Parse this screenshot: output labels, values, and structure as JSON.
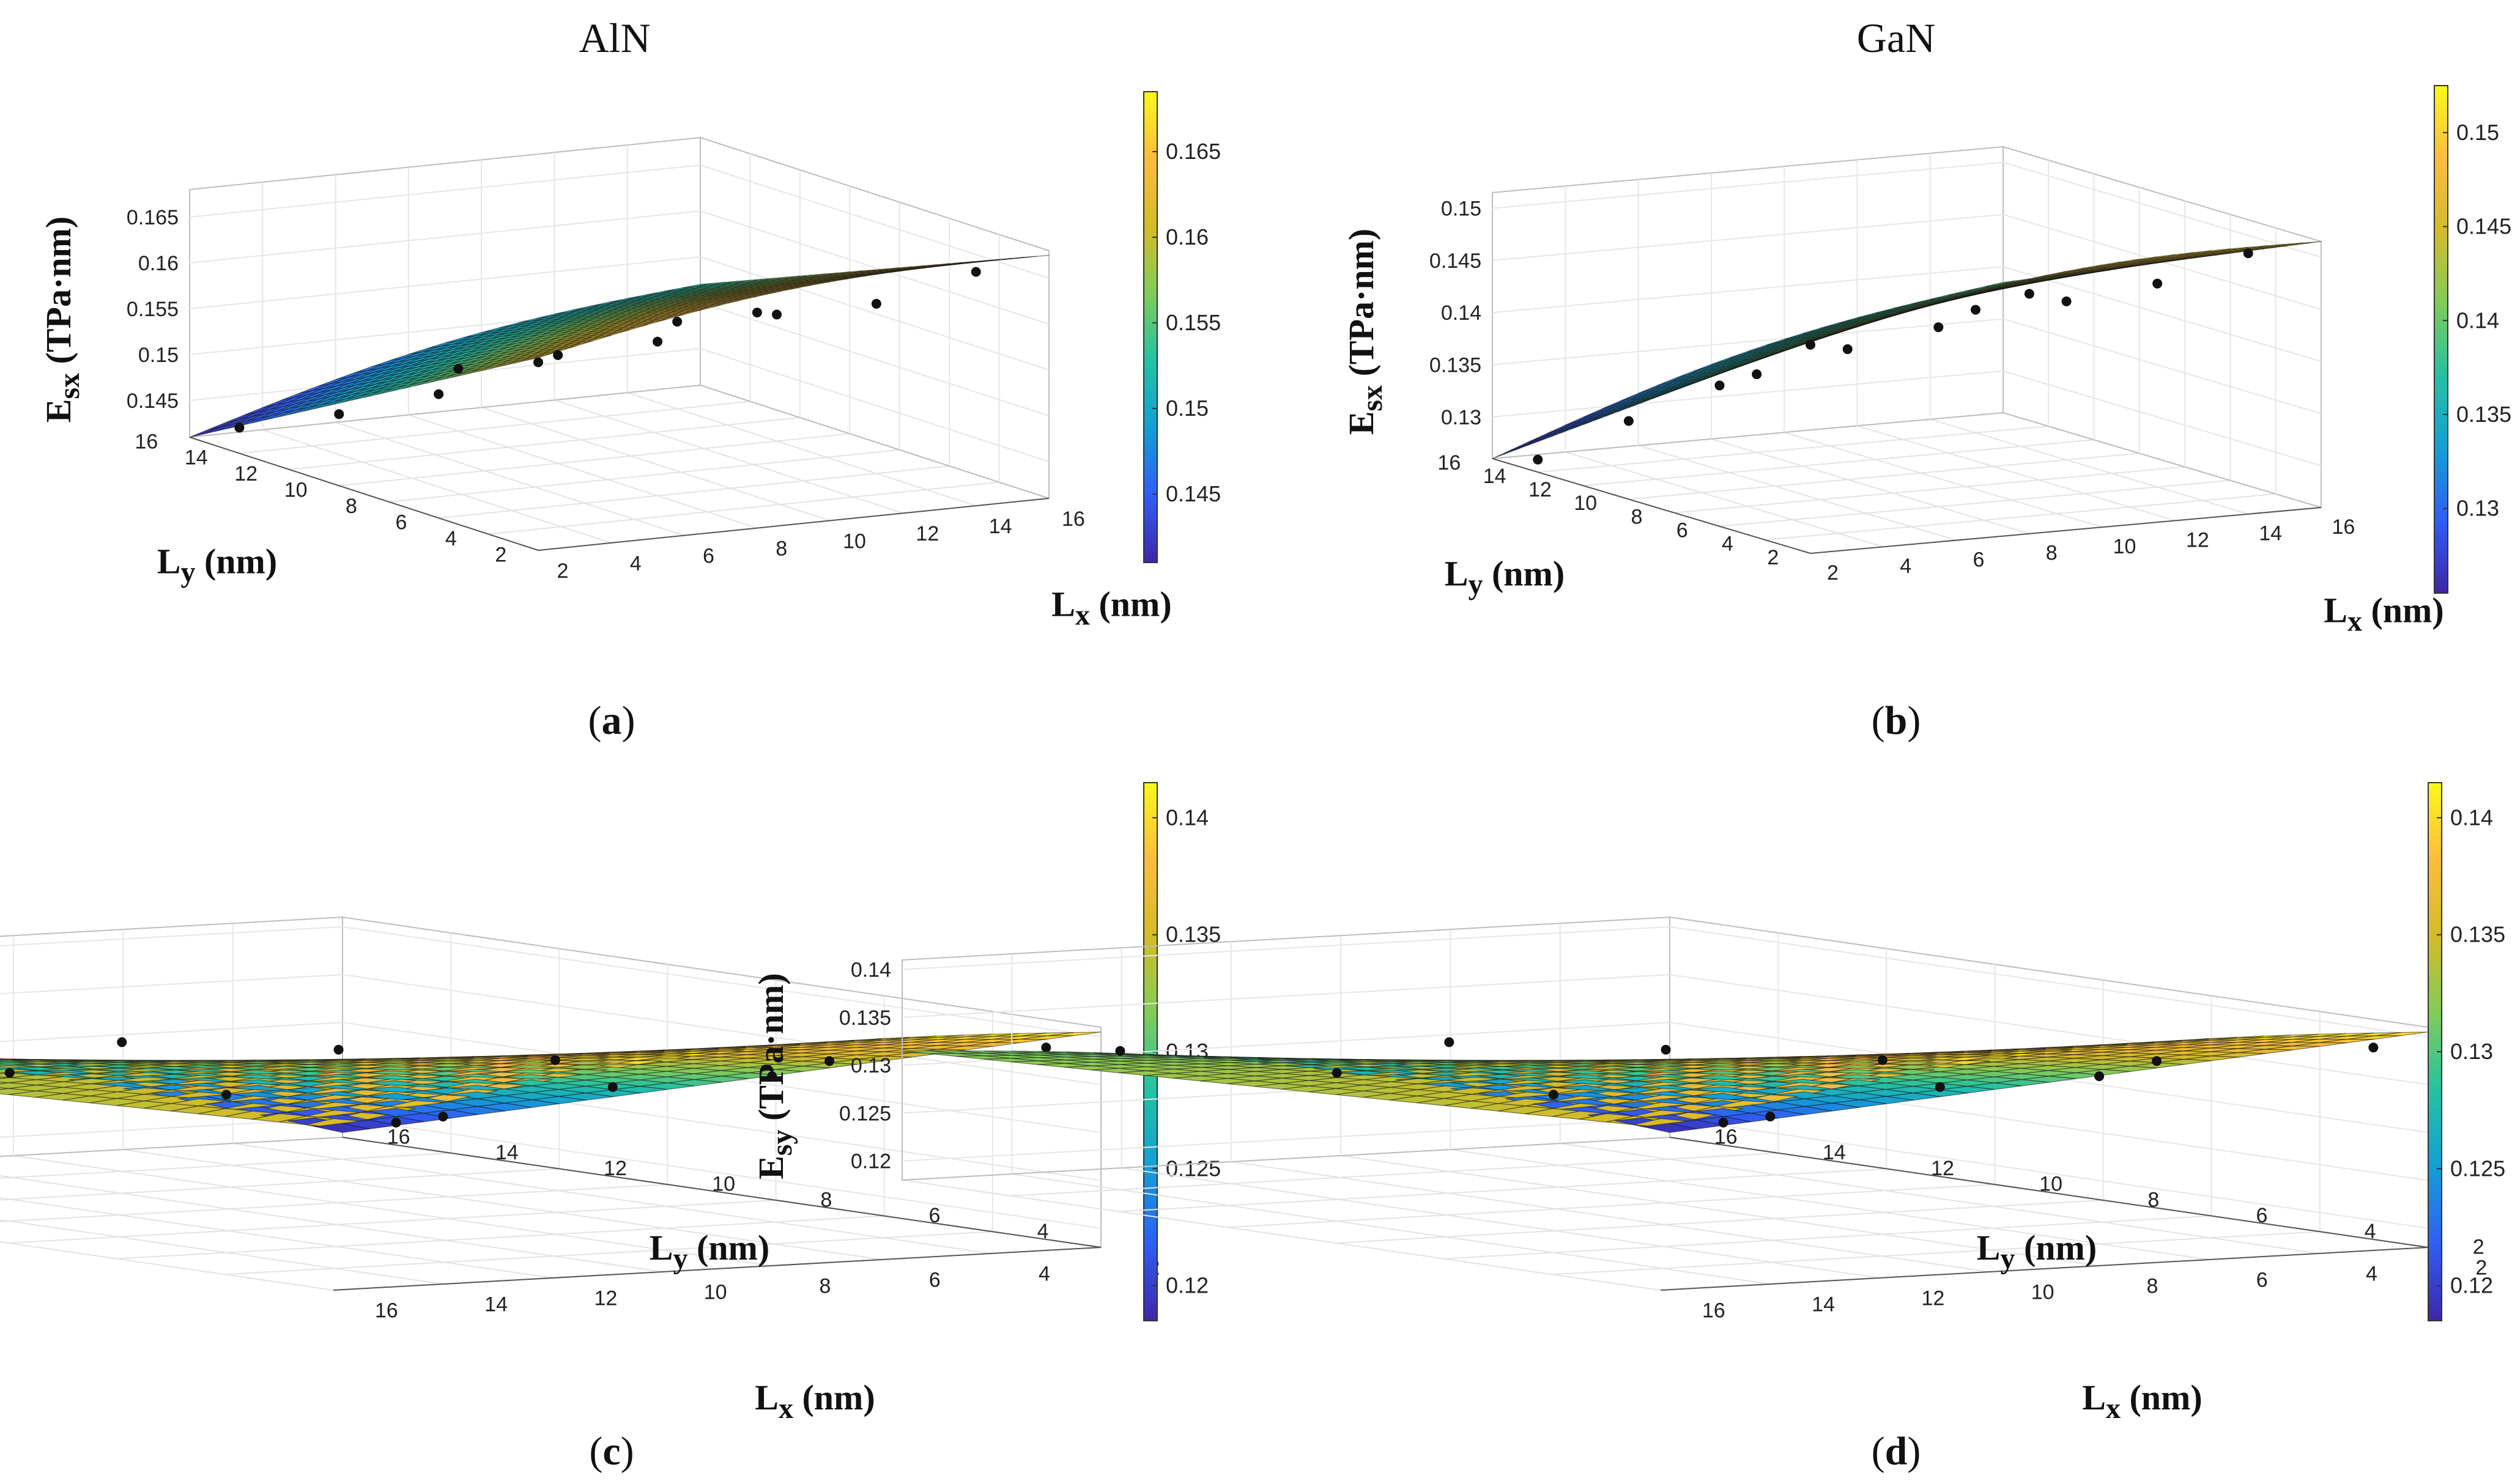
{
  "titles": {
    "left": "AlN",
    "right": "GaN"
  },
  "chart_data": [
    {
      "id": "a",
      "caption": {
        "open": "(",
        "letter": "a",
        "close": ")"
      },
      "type": "surface3d",
      "material": "AlN",
      "title": "AlN",
      "zlabel": {
        "main": "E",
        "sub": "sx",
        "rest": " (TPa·nm)"
      },
      "xlabel": {
        "main": "L",
        "sub": "x",
        "rest": " (nm)"
      },
      "ylabel": {
        "main": "L",
        "sub": "y",
        "rest": " (nm)"
      },
      "x_ticks": [
        "2",
        "4",
        "6",
        "8",
        "10",
        "12",
        "14",
        "16"
      ],
      "y_ticks": [
        "2",
        "4",
        "6",
        "8",
        "10",
        "12",
        "14",
        "16"
      ],
      "z_ticks": [
        "0.145",
        "0.15",
        "0.155",
        "0.16",
        "0.165"
      ],
      "colorbar_ticks": [
        "0.145",
        "0.15",
        "0.155",
        "0.16",
        "0.165"
      ],
      "z_range": [
        0.141,
        0.168
      ],
      "colorbar_range": [
        0.141,
        0.1685
      ],
      "view": "x-to-right",
      "surface": {
        "at_xmin_ymin": 0.162,
        "at_xmax_ymin": 0.1675,
        "at_xmin_ymax": 0.141,
        "at_xmax_ymax": 0.152
      },
      "points": [
        {
          "x": 2,
          "y": 2,
          "z": 0.1615
        },
        {
          "x": 8,
          "y": 2,
          "z": 0.1645
        },
        {
          "x": 14,
          "y": 2,
          "z": 0.1665
        },
        {
          "x": 2,
          "y": 6,
          "z": 0.1545
        },
        {
          "x": 8,
          "y": 6,
          "z": 0.1578
        },
        {
          "x": 14,
          "y": 6,
          "z": 0.1595
        },
        {
          "x": 2,
          "y": 10,
          "z": 0.1488
        },
        {
          "x": 8,
          "y": 10,
          "z": 0.1528
        },
        {
          "x": 14,
          "y": 10,
          "z": 0.1548
        },
        {
          "x": 2,
          "y": 14,
          "z": 0.1438
        },
        {
          "x": 8,
          "y": 14,
          "z": 0.1478
        },
        {
          "x": 14,
          "y": 14,
          "z": 0.1505
        }
      ]
    },
    {
      "id": "b",
      "caption": {
        "open": "(",
        "letter": "b",
        "close": ")"
      },
      "type": "surface3d",
      "material": "GaN",
      "title": "GaN",
      "zlabel": {
        "main": "E",
        "sub": "sx",
        "rest": " (TPa·nm)"
      },
      "xlabel": {
        "main": "L",
        "sub": "x",
        "rest": " (nm)"
      },
      "ylabel": {
        "main": "L",
        "sub": "y",
        "rest": " (nm)"
      },
      "x_ticks": [
        "2",
        "4",
        "6",
        "8",
        "10",
        "12",
        "14",
        "16"
      ],
      "y_ticks": [
        "2",
        "4",
        "6",
        "8",
        "10",
        "12",
        "14",
        "16"
      ],
      "z_ticks": [
        "0.13",
        "0.135",
        "0.14",
        "0.145",
        "0.15"
      ],
      "colorbar_ticks": [
        "0.13",
        "0.135",
        "0.14",
        "0.145",
        "0.15"
      ],
      "z_range": [
        0.126,
        0.1515
      ],
      "colorbar_range": [
        0.1255,
        0.1525
      ],
      "view": "x-to-right",
      "surface": {
        "at_xmin_ymin": 0.1465,
        "at_xmax_ymin": 0.1515,
        "at_xmin_ymax": 0.126,
        "at_xmax_ymax": 0.1385
      },
      "points": [
        {
          "x": 2,
          "y": 2,
          "z": 0.146
        },
        {
          "x": 8,
          "y": 2,
          "z": 0.149
        },
        {
          "x": 14,
          "y": 2,
          "z": 0.151
        },
        {
          "x": 2,
          "y": 6,
          "z": 0.1395
        },
        {
          "x": 8,
          "y": 6,
          "z": 0.1432
        },
        {
          "x": 14,
          "y": 6,
          "z": 0.1455
        },
        {
          "x": 2,
          "y": 10,
          "z": 0.1335
        },
        {
          "x": 8,
          "y": 10,
          "z": 0.1385
        },
        {
          "x": 14,
          "y": 10,
          "z": 0.1412
        },
        {
          "x": 2,
          "y": 14,
          "z": 0.1272
        },
        {
          "x": 8,
          "y": 14,
          "z": 0.1335
        },
        {
          "x": 14,
          "y": 14,
          "z": 0.1378
        }
      ]
    },
    {
      "id": "c",
      "caption": {
        "open": "(",
        "letter": "c",
        "close": ")"
      },
      "type": "surface3d",
      "material": "AlN",
      "zlabel": {
        "main": "E",
        "sub": "sy",
        "rest": " (TPa·nm)"
      },
      "xlabel": {
        "main": "L",
        "sub": "x",
        "rest": " (nm)"
      },
      "ylabel": {
        "main": "L",
        "sub": "y",
        "rest": " (nm)"
      },
      "x_ticks": [
        "2",
        "4",
        "6",
        "8",
        "10",
        "12",
        "14",
        "16"
      ],
      "y_ticks": [
        "2",
        "4",
        "6",
        "8",
        "10",
        "12",
        "14",
        "16"
      ],
      "z_ticks": [
        "0.12",
        "0.125",
        "0.13",
        "0.135",
        "0.14"
      ],
      "colorbar_ticks": [
        "0.12",
        "0.125",
        "0.13",
        "0.135",
        "0.14"
      ],
      "z_range": [
        0.118,
        0.141
      ],
      "colorbar_range": [
        0.1185,
        0.1415
      ],
      "view": "x-to-left",
      "surface": {
        "at_xmin_ymin": 0.1405,
        "at_xmax_ymin": 0.135,
        "at_xmin_ymax": 0.1185,
        "at_xmax_ymax": 0.1315
      },
      "points": [
        {
          "x": 14,
          "y": 2,
          "z": 0.1355
        },
        {
          "x": 8,
          "y": 2,
          "z": 0.1378
        },
        {
          "x": 3,
          "y": 2,
          "z": 0.1392
        },
        {
          "x": 14,
          "y": 6,
          "z": 0.1345
        },
        {
          "x": 8,
          "y": 6,
          "z": 0.1362
        },
        {
          "x": 3,
          "y": 6,
          "z": 0.1345
        },
        {
          "x": 14,
          "y": 10,
          "z": 0.1335
        },
        {
          "x": 8,
          "y": 10,
          "z": 0.134
        },
        {
          "x": 3,
          "y": 10,
          "z": 0.1285
        },
        {
          "x": 14,
          "y": 14,
          "z": 0.1325
        },
        {
          "x": 8,
          "y": 14,
          "z": 0.1315
        },
        {
          "x": 3,
          "y": 14,
          "z": 0.1215
        }
      ]
    },
    {
      "id": "d",
      "caption": {
        "open": "(",
        "letter": "d",
        "close": ")"
      },
      "type": "surface3d",
      "material": "GaN",
      "zlabel": {
        "main": "E",
        "sub": "sy",
        "rest": " (TPa·nm)"
      },
      "xlabel": {
        "main": "L",
        "sub": "x",
        "rest": " (nm)"
      },
      "ylabel": {
        "main": "L",
        "sub": "y",
        "rest": " (nm)"
      },
      "x_ticks": [
        "2",
        "4",
        "6",
        "8",
        "10",
        "12",
        "14",
        "16"
      ],
      "y_ticks": [
        "2",
        "4",
        "6",
        "8",
        "10",
        "12",
        "14",
        "16"
      ],
      "z_ticks": [
        "0.12",
        "0.125",
        "0.13",
        "0.135",
        "0.14"
      ],
      "colorbar_ticks": [
        "0.12",
        "0.125",
        "0.13",
        "0.135",
        "0.14"
      ],
      "z_range": [
        0.118,
        0.141
      ],
      "colorbar_range": [
        0.1185,
        0.1415
      ],
      "view": "x-to-left",
      "surface": {
        "at_xmin_ymin": 0.1405,
        "at_xmax_ymin": 0.135,
        "at_xmin_ymax": 0.1185,
        "at_xmax_ymax": 0.1315
      },
      "points": [
        {
          "x": 14,
          "y": 2,
          "z": 0.1355
        },
        {
          "x": 8,
          "y": 2,
          "z": 0.1378
        },
        {
          "x": 3,
          "y": 2,
          "z": 0.1392
        },
        {
          "x": 14,
          "y": 6,
          "z": 0.1345
        },
        {
          "x": 8,
          "y": 6,
          "z": 0.1362
        },
        {
          "x": 3,
          "y": 6,
          "z": 0.1345
        },
        {
          "x": 14,
          "y": 10,
          "z": 0.1335
        },
        {
          "x": 8,
          "y": 10,
          "z": 0.134
        },
        {
          "x": 3,
          "y": 10,
          "z": 0.1285
        },
        {
          "x": 14,
          "y": 14,
          "z": 0.1325
        },
        {
          "x": 8,
          "y": 14,
          "z": 0.1315
        },
        {
          "x": 3,
          "y": 14,
          "z": 0.1215
        }
      ]
    }
  ],
  "colormap": [
    "#3e26a8",
    "#2f5ef5",
    "#139fd5",
    "#23c2a3",
    "#81cc59",
    "#d4bb28",
    "#fcbc3d",
    "#f9f918"
  ]
}
